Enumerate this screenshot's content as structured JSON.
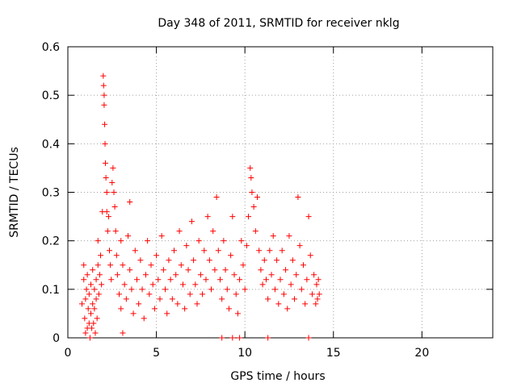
{
  "chart_data": {
    "type": "scatter",
    "title": "Day 348 of 2011, SRMTID for receiver nklg",
    "xlabel": "GPS time / hours",
    "ylabel": "SRMTID / TECUs",
    "xlim": [
      0,
      24
    ],
    "ylim": [
      0,
      0.6
    ],
    "xticks": [
      0,
      5,
      10,
      15,
      20
    ],
    "yticks": [
      0,
      0.1,
      0.2,
      0.3,
      0.4,
      0.5,
      0.6
    ],
    "xtick_labels": [
      "0",
      "5",
      "10",
      "15",
      "20"
    ],
    "ytick_labels": [
      "0",
      "0.1",
      "0.2",
      "0.3",
      "0.4",
      "0.5",
      "0.6"
    ],
    "grid": true,
    "marker": "+",
    "series": [
      {
        "name": "SRMTID",
        "color": "#ff0000",
        "points": [
          [
            0.8,
            0.07
          ],
          [
            0.9,
            0.15
          ],
          [
            0.9,
            0.12
          ],
          [
            0.95,
            0.04
          ],
          [
            1.0,
            0.01
          ],
          [
            1.0,
            0.08
          ],
          [
            1.05,
            0.1
          ],
          [
            1.1,
            0.02
          ],
          [
            1.1,
            0.13
          ],
          [
            1.15,
            0.06
          ],
          [
            1.2,
            0.03
          ],
          [
            1.2,
            0.09
          ],
          [
            1.25,
            0.0
          ],
          [
            1.3,
            0.05
          ],
          [
            1.3,
            0.11
          ],
          [
            1.35,
            0.02
          ],
          [
            1.4,
            0.07
          ],
          [
            1.4,
            0.14
          ],
          [
            1.45,
            0.03
          ],
          [
            1.5,
            0.1
          ],
          [
            1.5,
            0.06
          ],
          [
            1.55,
            0.01
          ],
          [
            1.6,
            0.12
          ],
          [
            1.6,
            0.08
          ],
          [
            1.65,
            0.04
          ],
          [
            1.7,
            0.15
          ],
          [
            1.7,
            0.2
          ],
          [
            1.75,
            0.09
          ],
          [
            1.8,
            0.13
          ],
          [
            1.85,
            0.17
          ],
          [
            1.9,
            0.11
          ],
          [
            1.95,
            0.26
          ],
          [
            2.0,
            0.54
          ],
          [
            2.02,
            0.52
          ],
          [
            2.05,
            0.5
          ],
          [
            2.05,
            0.48
          ],
          [
            2.08,
            0.44
          ],
          [
            2.1,
            0.4
          ],
          [
            2.12,
            0.36
          ],
          [
            2.15,
            0.33
          ],
          [
            2.2,
            0.3
          ],
          [
            2.2,
            0.26
          ],
          [
            2.25,
            0.22
          ],
          [
            2.3,
            0.25
          ],
          [
            2.35,
            0.18
          ],
          [
            2.4,
            0.15
          ],
          [
            2.45,
            0.12
          ],
          [
            2.5,
            0.32
          ],
          [
            2.55,
            0.35
          ],
          [
            2.6,
            0.3
          ],
          [
            2.65,
            0.27
          ],
          [
            2.7,
            0.22
          ],
          [
            2.75,
            0.17
          ],
          [
            2.8,
            0.13
          ],
          [
            2.9,
            0.09
          ],
          [
            3.0,
            0.2
          ],
          [
            3.0,
            0.06
          ],
          [
            3.1,
            0.01
          ],
          [
            3.1,
            0.15
          ],
          [
            3.2,
            0.11
          ],
          [
            3.3,
            0.08
          ],
          [
            3.4,
            0.21
          ],
          [
            3.5,
            0.28
          ],
          [
            3.5,
            0.14
          ],
          [
            3.6,
            0.1
          ],
          [
            3.7,
            0.05
          ],
          [
            3.8,
            0.18
          ],
          [
            3.9,
            0.12
          ],
          [
            4.0,
            0.07
          ],
          [
            4.1,
            0.16
          ],
          [
            4.2,
            0.1
          ],
          [
            4.3,
            0.04
          ],
          [
            4.4,
            0.13
          ],
          [
            4.5,
            0.2
          ],
          [
            4.6,
            0.09
          ],
          [
            4.7,
            0.15
          ],
          [
            4.8,
            0.11
          ],
          [
            4.9,
            0.06
          ],
          [
            5.0,
            0.17
          ],
          [
            5.1,
            0.12
          ],
          [
            5.2,
            0.08
          ],
          [
            5.3,
            0.21
          ],
          [
            5.4,
            0.14
          ],
          [
            5.5,
            0.1
          ],
          [
            5.6,
            0.05
          ],
          [
            5.7,
            0.16
          ],
          [
            5.8,
            0.12
          ],
          [
            5.9,
            0.08
          ],
          [
            6.0,
            0.18
          ],
          [
            6.1,
            0.13
          ],
          [
            6.2,
            0.07
          ],
          [
            6.3,
            0.22
          ],
          [
            6.4,
            0.15
          ],
          [
            6.5,
            0.11
          ],
          [
            6.6,
            0.06
          ],
          [
            6.7,
            0.19
          ],
          [
            6.8,
            0.14
          ],
          [
            6.9,
            0.09
          ],
          [
            7.0,
            0.24
          ],
          [
            7.1,
            0.16
          ],
          [
            7.2,
            0.11
          ],
          [
            7.3,
            0.07
          ],
          [
            7.4,
            0.2
          ],
          [
            7.5,
            0.13
          ],
          [
            7.6,
            0.09
          ],
          [
            7.7,
            0.18
          ],
          [
            7.8,
            0.12
          ],
          [
            7.9,
            0.25
          ],
          [
            8.0,
            0.16
          ],
          [
            8.1,
            0.1
          ],
          [
            8.2,
            0.22
          ],
          [
            8.3,
            0.14
          ],
          [
            8.4,
            0.29
          ],
          [
            8.5,
            0.18
          ],
          [
            8.6,
            0.12
          ],
          [
            8.7,
            0.08
          ],
          [
            8.8,
            0.2
          ],
          [
            8.9,
            0.14
          ],
          [
            9.0,
            0.1
          ],
          [
            9.1,
            0.06
          ],
          [
            9.2,
            0.17
          ],
          [
            9.3,
            0.25
          ],
          [
            9.4,
            0.13
          ],
          [
            9.5,
            0.09
          ],
          [
            9.6,
            0.05
          ],
          [
            9.7,
            0.12
          ],
          [
            9.8,
            0.2
          ],
          [
            9.9,
            0.15
          ],
          [
            10.0,
            0.1
          ],
          [
            10.1,
            0.19
          ],
          [
            10.2,
            0.25
          ],
          [
            10.3,
            0.35
          ],
          [
            10.35,
            0.33
          ],
          [
            10.4,
            0.3
          ],
          [
            10.5,
            0.27
          ],
          [
            10.6,
            0.22
          ],
          [
            10.7,
            0.29
          ],
          [
            10.8,
            0.18
          ],
          [
            10.9,
            0.14
          ],
          [
            11.0,
            0.11
          ],
          [
            11.1,
            0.16
          ],
          [
            11.2,
            0.12
          ],
          [
            11.3,
            0.08
          ],
          [
            11.4,
            0.18
          ],
          [
            11.5,
            0.13
          ],
          [
            11.6,
            0.21
          ],
          [
            11.7,
            0.1
          ],
          [
            11.8,
            0.16
          ],
          [
            11.9,
            0.07
          ],
          [
            12.0,
            0.12
          ],
          [
            12.1,
            0.18
          ],
          [
            12.2,
            0.09
          ],
          [
            12.3,
            0.14
          ],
          [
            12.4,
            0.06
          ],
          [
            12.5,
            0.21
          ],
          [
            12.6,
            0.11
          ],
          [
            12.7,
            0.16
          ],
          [
            12.8,
            0.08
          ],
          [
            12.9,
            0.13
          ],
          [
            13.0,
            0.29
          ],
          [
            13.1,
            0.19
          ],
          [
            13.2,
            0.1
          ],
          [
            13.3,
            0.15
          ],
          [
            13.4,
            0.07
          ],
          [
            13.5,
            0.12
          ],
          [
            13.6,
            0.25
          ],
          [
            13.7,
            0.17
          ],
          [
            13.8,
            0.09
          ],
          [
            13.9,
            0.13
          ],
          [
            14.0,
            0.07
          ],
          [
            14.05,
            0.11
          ],
          [
            14.1,
            0.08
          ],
          [
            14.15,
            0.12
          ],
          [
            14.2,
            0.09
          ],
          [
            8.7,
            0.0
          ],
          [
            9.3,
            0.0
          ],
          [
            9.7,
            0.0
          ],
          [
            11.3,
            0.0
          ],
          [
            13.6,
            0.0
          ]
        ]
      }
    ]
  }
}
